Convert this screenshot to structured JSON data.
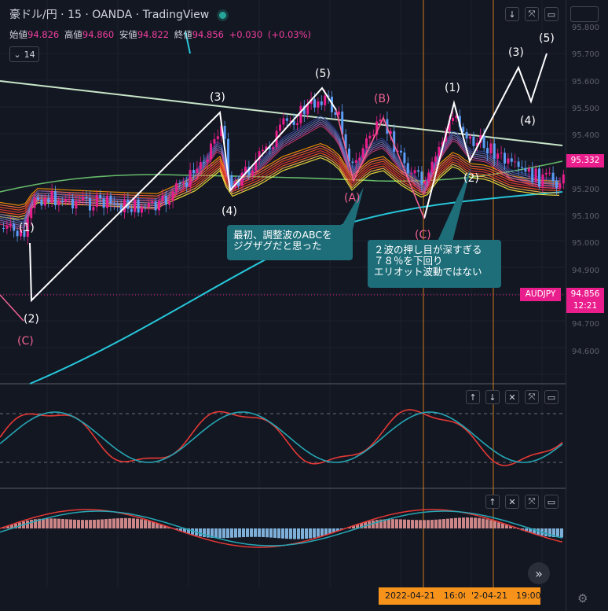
{
  "header": {
    "symbol": "豪ドル/円",
    "interval": "15",
    "broker": "OANDA",
    "platform": "TradingView",
    "separator": "·"
  },
  "ohlc": {
    "open_label": "始値",
    "open": "94.826",
    "high_label": "高値",
    "high": "94.860",
    "low_label": "安値",
    "low": "94.822",
    "close_label": "終値",
    "close": "94.856",
    "change": "+0.030",
    "change_pct": "(+0.03%)"
  },
  "collapse": {
    "count": "14"
  },
  "price_axis": {
    "ticks": [
      "95.800",
      "95.700",
      "95.600",
      "95.500",
      "95.400",
      "95.300",
      "95.200",
      "95.100",
      "95.000",
      "94.900",
      "94.800",
      "94.700",
      "94.600"
    ],
    "current_price": "95.332",
    "symbol_tag": "AUDJPY",
    "last_price": "94.856",
    "countdown": "12:21"
  },
  "wave_labels": {
    "w1_left": "(1)",
    "w2_left": "(2)",
    "c_left": "(C)",
    "w3": "(3)",
    "w4": "(4)",
    "w5": "(5)",
    "a": "(A)",
    "b": "(B)",
    "c": "(C)",
    "w1_right": "(1)",
    "w2_right": "(2)",
    "w3_right": "(3)",
    "w4_right": "(4)",
    "w5_right": "(5)"
  },
  "notes": {
    "note1": "最初、調整波のABCを\nジグザグだと思った",
    "note2": "２波の押し目が深すぎる\n７８％を下回り\nエリオット波動ではない"
  },
  "time_axis": {
    "tag1": "2022-04-21　16:00",
    "tag2": "'2-04-21　19:00"
  },
  "colors": {
    "background": "#131722",
    "bull": "#e91e8c",
    "bear": "#5b9cf6",
    "annotation": "#1e6e7a",
    "trendline": "#c8e6c9"
  },
  "icons": {
    "pane_buttons": [
      "arrow-down-icon",
      "collapse-icon",
      "maximize-icon"
    ],
    "osc_buttons": [
      "arrow-up-icon",
      "arrow-down-icon",
      "close-icon",
      "maximize-icon"
    ],
    "macd_buttons": [
      "arrow-up-icon",
      "close-icon",
      "maximize-icon"
    ]
  }
}
